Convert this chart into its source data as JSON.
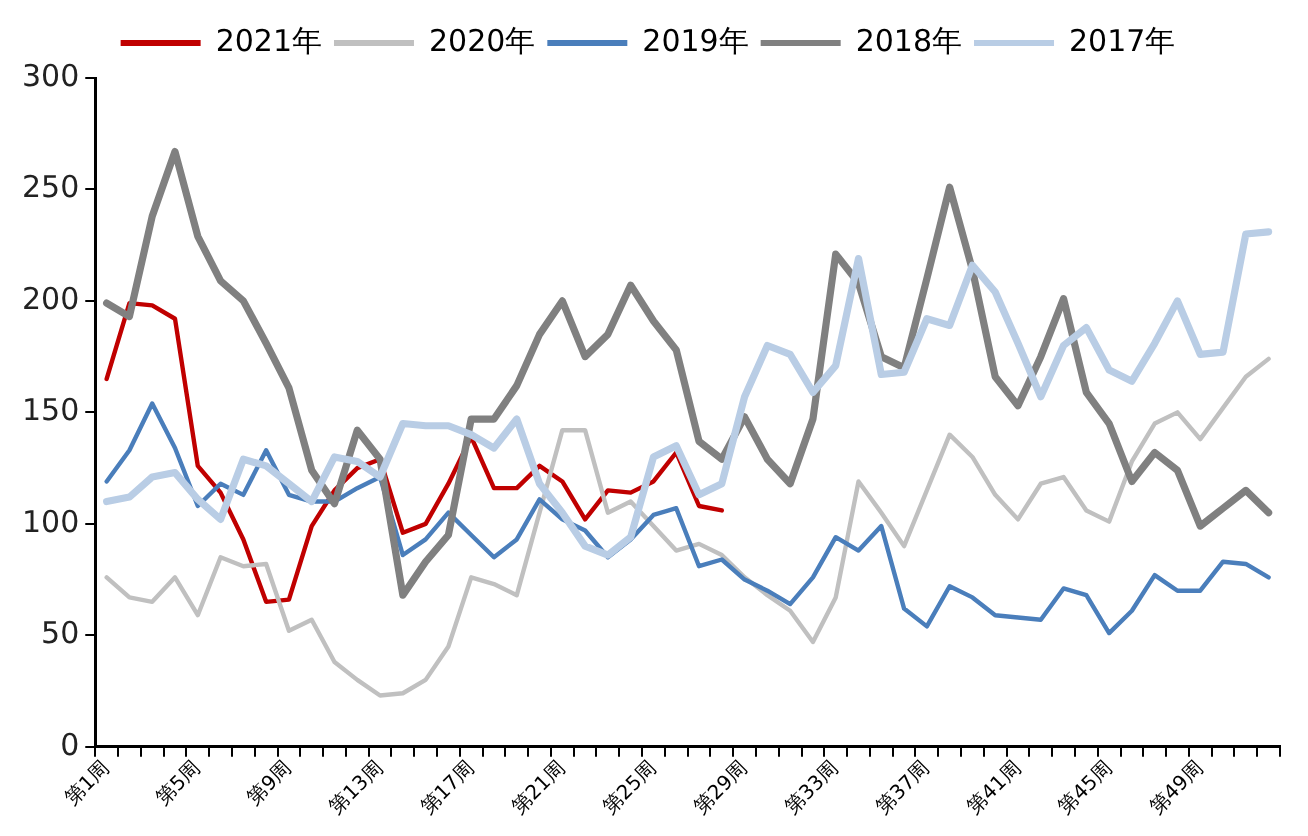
{
  "chart_data": {
    "type": "line",
    "categories": [
      "第1周",
      null,
      null,
      null,
      "第5周",
      null,
      null,
      null,
      "第9周",
      null,
      null,
      null,
      "第13周",
      null,
      null,
      null,
      "第17周",
      null,
      null,
      null,
      "第21周",
      null,
      null,
      null,
      "第25周",
      null,
      null,
      null,
      "第29周",
      null,
      null,
      null,
      "第33周",
      null,
      null,
      null,
      "第37周",
      null,
      null,
      null,
      "第41周",
      null,
      null,
      null,
      "第45周",
      null,
      null,
      null,
      "第49周",
      null,
      null,
      null
    ],
    "series": [
      {
        "name": "2021年",
        "color": "#c00000",
        "values": [
          165,
          199,
          198,
          192,
          126,
          114,
          93,
          65,
          66,
          99,
          115,
          125,
          129,
          96,
          100,
          118,
          139,
          116,
          116,
          126,
          119,
          102,
          115,
          114,
          119,
          132,
          108,
          106,
          null,
          null,
          null,
          null,
          null,
          null,
          null,
          null,
          null,
          null,
          null,
          null,
          null,
          null,
          null,
          null,
          null,
          null,
          null,
          null,
          null,
          null,
          null,
          null
        ]
      },
      {
        "name": "2020年",
        "color": "#c0c0c0",
        "values": [
          76,
          67,
          65,
          76,
          59,
          85,
          81,
          82,
          52,
          57,
          38,
          30,
          23,
          24,
          30,
          45,
          76,
          73,
          68,
          105,
          142,
          142,
          105,
          110,
          99,
          88,
          91,
          86,
          76,
          68,
          61,
          47,
          67,
          119,
          105,
          90,
          115,
          140,
          130,
          113,
          102,
          118,
          121,
          106,
          101,
          128,
          145,
          150,
          138,
          152,
          166,
          174
        ]
      },
      {
        "name": "2019年",
        "color": "#4a7ebb",
        "values": [
          119,
          133,
          154,
          134,
          108,
          118,
          113,
          133,
          113,
          110,
          110,
          116,
          121,
          86,
          93,
          105,
          95,
          85,
          93,
          111,
          102,
          97,
          85,
          93,
          104,
          107,
          81,
          84,
          75,
          70,
          64,
          76,
          94,
          88,
          99,
          62,
          54,
          72,
          67,
          59,
          58,
          57,
          71,
          68,
          51,
          61,
          77,
          70,
          70,
          83,
          82,
          76
        ]
      },
      {
        "name": "2018年",
        "color": "#808080",
        "values": [
          199,
          193,
          238,
          267,
          229,
          209,
          200,
          181,
          161,
          124,
          109,
          142,
          129,
          68,
          83,
          95,
          147,
          147,
          162,
          185,
          200,
          175,
          185,
          207,
          191,
          178,
          137,
          129,
          148,
          129,
          118,
          147,
          221,
          208,
          175,
          170,
          210,
          251,
          214,
          166,
          153,
          175,
          201,
          159,
          145,
          119,
          132,
          124,
          99,
          107,
          115,
          105
        ]
      },
      {
        "name": "2017年",
        "color": "#b9cde5",
        "values": [
          110,
          112,
          121,
          123,
          111,
          102,
          129,
          126,
          118,
          110,
          130,
          128,
          121,
          145,
          144,
          144,
          140,
          134,
          147,
          118,
          105,
          90,
          86,
          94,
          130,
          135,
          113,
          118,
          157,
          180,
          176,
          159,
          171,
          219,
          167,
          168,
          192,
          189,
          216,
          204,
          181,
          157,
          180,
          188,
          169,
          164,
          181,
          200,
          176,
          177,
          230,
          231
        ]
      }
    ],
    "ylim": [
      0,
      300
    ],
    "yticks": [
      0,
      50,
      100,
      150,
      200,
      250,
      300
    ],
    "grid": false,
    "legend": "top",
    "marker": "none",
    "line_style": "solid"
  }
}
